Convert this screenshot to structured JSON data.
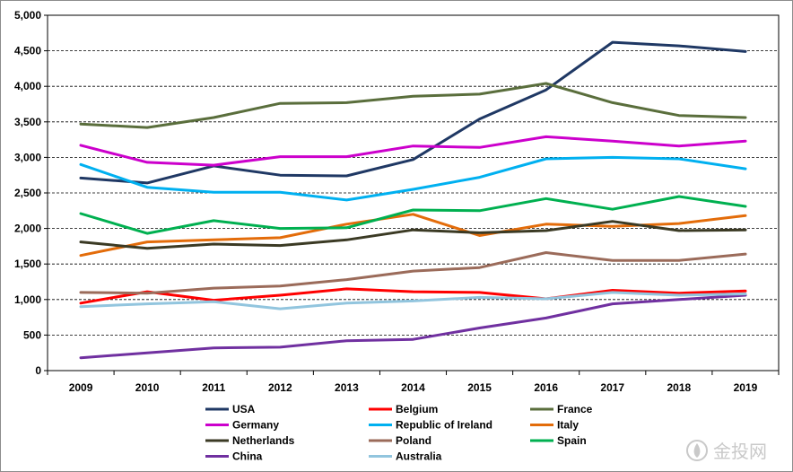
{
  "chart_data": {
    "type": "line",
    "title": "",
    "xlabel": "",
    "ylabel": "",
    "ylim": [
      0,
      5000
    ],
    "yticks": [
      0,
      500,
      1000,
      1500,
      2000,
      2500,
      3000,
      3500,
      4000,
      4500,
      5000
    ],
    "ytick_labels": [
      "0",
      "500",
      "1,000",
      "1,500",
      "2,000",
      "2,500",
      "3,000",
      "3,500",
      "4,000",
      "4,500",
      "5,000"
    ],
    "categories": [
      "2009",
      "2010",
      "2011",
      "2012",
      "2013",
      "2014",
      "2015",
      "2016",
      "2017",
      "2018",
      "2019"
    ],
    "grid": "horizontal dashed",
    "legend_position": "bottom",
    "series": [
      {
        "name": "USA",
        "color": "#1f3864",
        "values": [
          2710,
          2640,
          2880,
          2750,
          2740,
          2970,
          3540,
          3950,
          4620,
          4570,
          4490
        ]
      },
      {
        "name": "Belgium",
        "color": "#ff0000",
        "values": [
          950,
          1110,
          990,
          1060,
          1150,
          1110,
          1100,
          1010,
          1130,
          1090,
          1120
        ]
      },
      {
        "name": "France",
        "color": "#5a6e3c",
        "values": [
          3470,
          3420,
          3560,
          3760,
          3770,
          3860,
          3890,
          4040,
          3770,
          3590,
          3560
        ]
      },
      {
        "name": "Germany",
        "color": "#cc00cc",
        "values": [
          3170,
          2930,
          2890,
          3010,
          3010,
          3160,
          3140,
          3290,
          3230,
          3160,
          3230
        ]
      },
      {
        "name": "Republic of Ireland",
        "color": "#00b0f0",
        "values": [
          2900,
          2580,
          2510,
          2510,
          2400,
          2550,
          2720,
          2980,
          3000,
          2980,
          2840
        ]
      },
      {
        "name": "Italy",
        "color": "#e36c0a",
        "values": [
          1620,
          1810,
          1840,
          1870,
          2060,
          2200,
          1900,
          2060,
          2030,
          2070,
          2180
        ]
      },
      {
        "name": "Netherlands",
        "color": "#3b3a24",
        "values": [
          1810,
          1720,
          1780,
          1760,
          1840,
          1980,
          1940,
          1970,
          2100,
          1970,
          1980
        ]
      },
      {
        "name": "Poland",
        "color": "#9b6b5a",
        "values": [
          1100,
          1090,
          1160,
          1190,
          1280,
          1400,
          1450,
          1660,
          1550,
          1550,
          1640
        ]
      },
      {
        "name": "Spain",
        "color": "#00b050",
        "values": [
          2210,
          1930,
          2110,
          2000,
          2010,
          2260,
          2250,
          2420,
          2270,
          2450,
          2310
        ]
      },
      {
        "name": "China",
        "color": "#7030a0",
        "values": [
          180,
          250,
          320,
          330,
          420,
          440,
          600,
          740,
          940,
          1000,
          1060
        ]
      },
      {
        "name": "Australia",
        "color": "#92c5de",
        "values": [
          900,
          940,
          970,
          870,
          950,
          980,
          1030,
          1010,
          1100,
          1060,
          1080
        ]
      }
    ]
  },
  "watermark": {
    "text": "金投网"
  }
}
